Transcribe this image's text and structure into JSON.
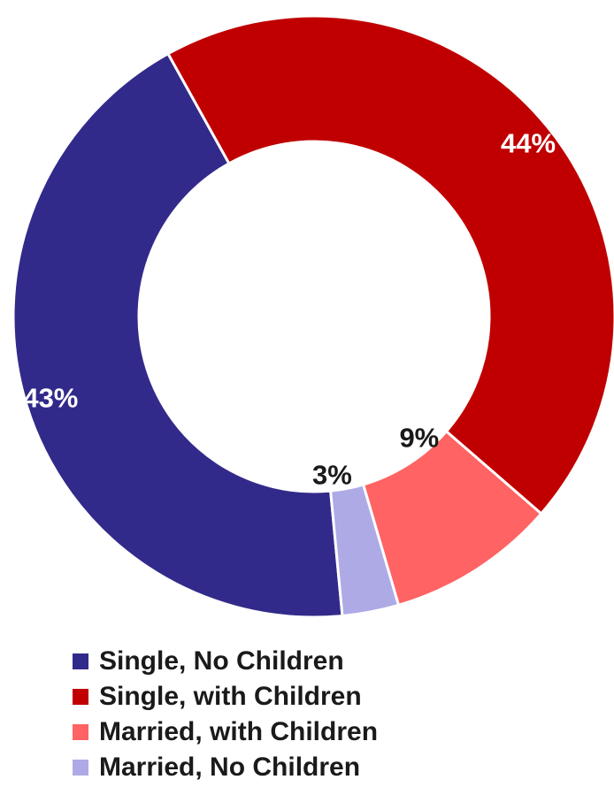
{
  "chart_data": {
    "type": "pie",
    "title": "",
    "categories": [
      "Single, No Children",
      "Single, with Children",
      "Married, with Children",
      "Married, No Children"
    ],
    "values": [
      43,
      44,
      9,
      3
    ],
    "data_labels": [
      "43%",
      "44%",
      "9%",
      "3%"
    ],
    "colors": [
      "#322A8A",
      "#C00000",
      "#FF6363",
      "#AEAAE6"
    ],
    "label_colors": [
      "#FFFFFF",
      "#FFFFFF",
      "#1A1A1A",
      "#1A1A1A"
    ],
    "donut": true,
    "legend_position": "bottom"
  }
}
